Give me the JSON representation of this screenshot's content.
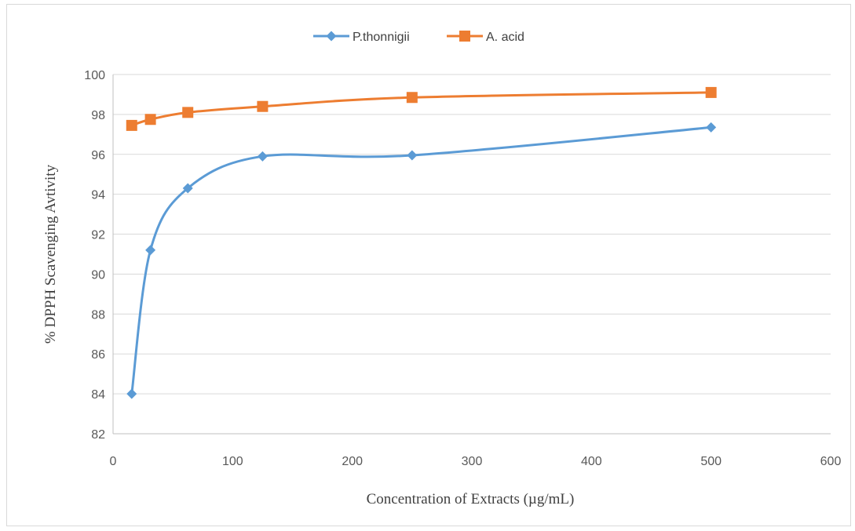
{
  "chart_data": {
    "type": "line",
    "title": "",
    "xlabel": "Concentration of Extracts (µg/mL)",
    "ylabel": "% DPPH Scavenging Avtivity",
    "xlim": [
      0,
      600
    ],
    "ylim": [
      82,
      100
    ],
    "x_ticks": [
      "0",
      "100",
      "200",
      "300",
      "400",
      "500",
      "600"
    ],
    "y_ticks": [
      "82",
      "84",
      "86",
      "88",
      "90",
      "92",
      "94",
      "96",
      "98",
      "100"
    ],
    "grid": "horizontal",
    "legend_position": "top",
    "smooth": true,
    "series": [
      {
        "name": "P.thonnigii",
        "color": "#5b9bd5",
        "marker": "diamond",
        "x": [
          15.6,
          31.25,
          62.5,
          125,
          250,
          500
        ],
        "values": [
          84.0,
          91.2,
          94.3,
          95.9,
          95.95,
          97.35
        ]
      },
      {
        "name": "A. acid",
        "color": "#ed7d31",
        "marker": "square",
        "x": [
          15.6,
          31.25,
          62.5,
          125,
          250,
          500
        ],
        "values": [
          97.45,
          97.75,
          98.1,
          98.4,
          98.85,
          99.1
        ]
      }
    ]
  }
}
